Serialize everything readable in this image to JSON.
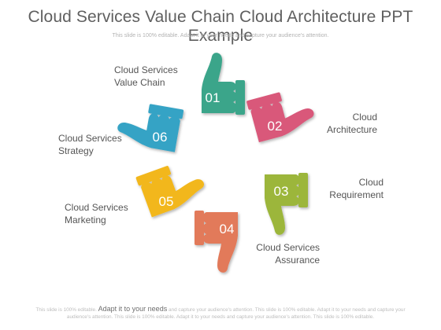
{
  "title": "Cloud Services Value Chain Cloud Architecture PPT Example",
  "subtitle": "This slide is 100% editable. Adapt it to your needs and capture your audience's attention.",
  "items": [
    {
      "num": "01",
      "label": "Cloud Services\nValue Chain",
      "color": "#3aa58a"
    },
    {
      "num": "02",
      "label": "Cloud\nArchitecture",
      "color": "#d9587a"
    },
    {
      "num": "03",
      "label": "Cloud\nRequirement",
      "color": "#9cb63a"
    },
    {
      "num": "04",
      "label": "Cloud Services\nAssurance",
      "color": "#e27a5a"
    },
    {
      "num": "05",
      "label": "Cloud Services\nMarketing",
      "color": "#f2b71e"
    },
    {
      "num": "06",
      "label": "Cloud Services\nStrategy",
      "color": "#35a3c5"
    }
  ],
  "footer": {
    "pre": "This slide is 100% editable.",
    "big": "Adapt it to your needs",
    "post": "and capture your audience's attention. This slide is 100% editable. Adapt it to your needs and capture your audience's attention. This slide is 100% editable. Adapt it to your needs and capture your audience's attention. This slide is 100% editable."
  }
}
